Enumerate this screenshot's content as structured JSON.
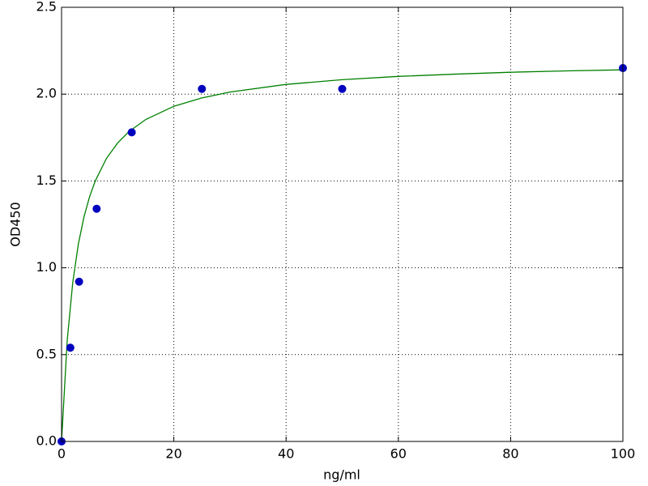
{
  "chart_data": {
    "type": "scatter",
    "xlabel": "ng/ml",
    "ylabel": "OD450",
    "xlim": [
      0,
      100
    ],
    "xticks": [
      0,
      20,
      40,
      60,
      80,
      100
    ],
    "ylim": [
      0,
      2.5
    ],
    "yticks": [
      {
        "value": 0,
        "label": "0.0"
      },
      0.5,
      {
        "value": 1,
        "label": "1.0"
      },
      1.5,
      {
        "value": 2,
        "label": "2.0"
      },
      2.5
    ],
    "grid": true,
    "series": [
      {
        "style": "markers",
        "color": "#0000bf",
        "x": [
          0,
          1.5625,
          3.125,
          6.25,
          12.5,
          25,
          50,
          100
        ],
        "y": [
          0,
          0.54,
          0.92,
          1.34,
          1.78,
          2.03,
          2.03,
          2.15
        ]
      },
      {
        "style": "line",
        "color": "#008000",
        "x": [
          0,
          1,
          2,
          3,
          4,
          5,
          6,
          8,
          10,
          12,
          15,
          20,
          25,
          30,
          40,
          50,
          60,
          70,
          80,
          90,
          100
        ],
        "y": [
          0,
          0.579,
          0.917,
          1.138,
          1.294,
          1.41,
          1.5,
          1.63,
          1.719,
          1.784,
          1.854,
          1.93,
          1.978,
          2.012,
          2.056,
          2.083,
          2.102,
          2.115,
          2.126,
          2.134,
          2.14
        ]
      }
    ]
  }
}
